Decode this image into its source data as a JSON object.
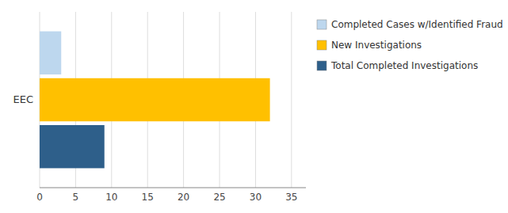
{
  "chart_data": {
    "type": "bar",
    "orientation": "horizontal",
    "categories": [
      "EEC"
    ],
    "series": [
      {
        "name": "Completed Cases w/Identified Fraud",
        "color": "#BDD7EE",
        "values": [
          3
        ]
      },
      {
        "name": "New Investigations",
        "color": "#FFC000",
        "values": [
          32
        ]
      },
      {
        "name": "Total Completed Investigations",
        "color": "#2E5F8A",
        "values": [
          9
        ]
      }
    ],
    "xlim": [
      0,
      37
    ],
    "xticks": [
      0,
      5,
      10,
      15,
      20,
      25,
      30,
      35
    ],
    "grid": true,
    "legend": "right"
  }
}
